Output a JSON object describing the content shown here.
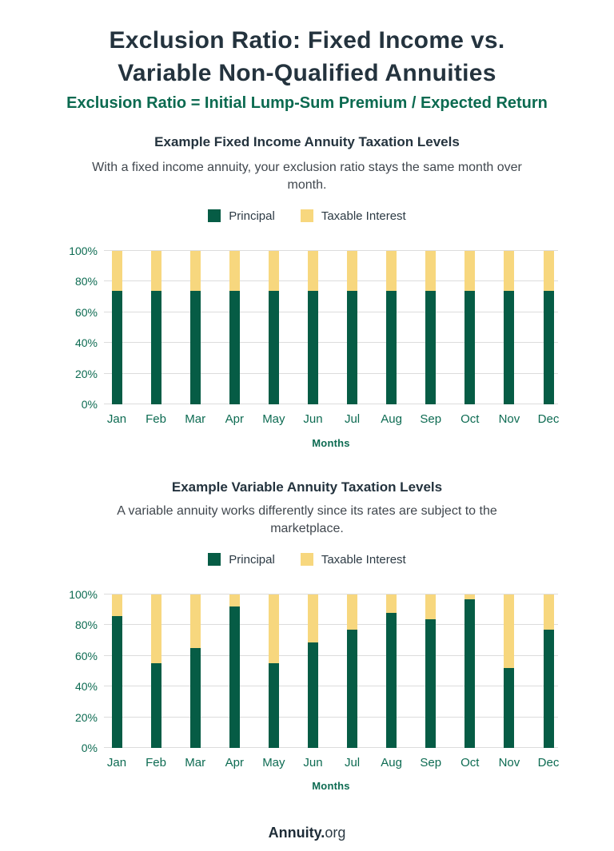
{
  "page": {
    "title_line1": "Exclusion Ratio: Fixed Income vs.",
    "title_line2": "Variable Non-Qualified Annuities",
    "subtitle": "Exclusion Ratio = Initial Lump-Sum Premium / Expected Return",
    "footer_brand_bold": "Annuity.",
    "footer_brand_rest": "org"
  },
  "legend": {
    "principal_label": "Principal",
    "taxable_label": "Taxable Interest"
  },
  "colors": {
    "principal": "#065c45",
    "taxable_interest": "#f7d77e",
    "title_dark": "#24333e",
    "green_heading": "#0b6a50",
    "axis_green": "#0d6b52",
    "body_text": "#40474e",
    "gridline": "#dcdcdc"
  },
  "chart_data": [
    {
      "type": "bar",
      "stacked": true,
      "title": "Example Fixed Income Annuity Taxation Levels",
      "description": "With a fixed income annuity, your exclusion ratio stays the same month over month.",
      "categories": [
        "Jan",
        "Feb",
        "Mar",
        "Apr",
        "May",
        "Jun",
        "Jul",
        "Aug",
        "Sep",
        "Oct",
        "Nov",
        "Dec"
      ],
      "series": [
        {
          "name": "Principal",
          "values": [
            74,
            74,
            74,
            74,
            74,
            74,
            74,
            74,
            74,
            74,
            74,
            74
          ]
        },
        {
          "name": "Taxable Interest",
          "values": [
            26,
            26,
            26,
            26,
            26,
            26,
            26,
            26,
            26,
            26,
            26,
            26
          ]
        }
      ],
      "xlabel": "Months",
      "ylabel": "",
      "ylim": [
        0,
        100
      ],
      "yticks": [
        "0%",
        "20%",
        "40%",
        "60%",
        "80%",
        "100%"
      ],
      "grid": true,
      "legend_position": "top"
    },
    {
      "type": "bar",
      "stacked": true,
      "title": "Example Variable Annuity Taxation Levels",
      "description": "A variable annuity works differently since its rates are subject to the marketplace.",
      "categories": [
        "Jan",
        "Feb",
        "Mar",
        "Apr",
        "May",
        "Jun",
        "Jul",
        "Aug",
        "Sep",
        "Oct",
        "Nov",
        "Dec"
      ],
      "series": [
        {
          "name": "Principal",
          "values": [
            86,
            55,
            65,
            92,
            55,
            69,
            77,
            88,
            84,
            97,
            52,
            77
          ]
        },
        {
          "name": "Taxable Interest",
          "values": [
            14,
            45,
            35,
            8,
            45,
            31,
            23,
            12,
            16,
            3,
            48,
            23
          ]
        }
      ],
      "xlabel": "Months",
      "ylabel": "",
      "ylim": [
        0,
        100
      ],
      "yticks": [
        "0%",
        "20%",
        "40%",
        "60%",
        "80%",
        "100%"
      ],
      "grid": true,
      "legend_position": "top"
    }
  ]
}
